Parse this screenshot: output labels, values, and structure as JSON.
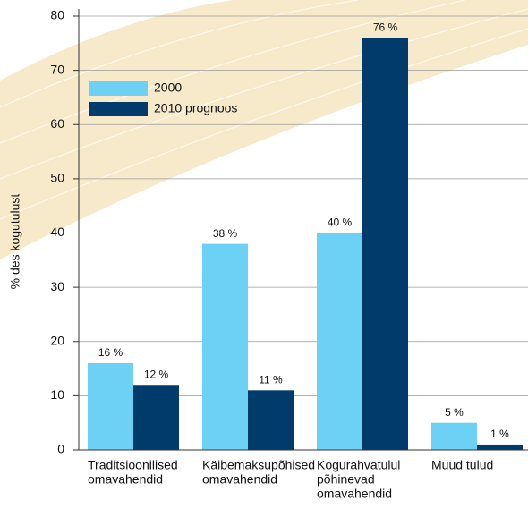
{
  "chart_data": {
    "type": "bar",
    "y_label": "% des kogutulust",
    "categories": [
      [
        "Traditsioonilised",
        "omavahendid"
      ],
      [
        "Käibemaksupõhised",
        "omavahendid"
      ],
      [
        "Kogurahvatulul",
        "põhinevad",
        "omavahendid"
      ],
      [
        "Muud tulud"
      ]
    ],
    "series": [
      {
        "name": "2000",
        "color": "#6dd0f5",
        "values": [
          16,
          38,
          40,
          5
        ],
        "value_labels": [
          "16 %",
          "38 %",
          "40 %",
          "5 %"
        ]
      },
      {
        "name": "2010 prognoos",
        "color": "#003b6b",
        "values": [
          12,
          11,
          76,
          1
        ],
        "value_labels": [
          "12 %",
          "11 %",
          "76 %",
          "1 %"
        ]
      }
    ],
    "ylim": [
      0,
      80
    ],
    "yticks": [
      0,
      10,
      20,
      30,
      40,
      50,
      60,
      70,
      80
    ],
    "grid": true,
    "legend": "upper-left"
  }
}
